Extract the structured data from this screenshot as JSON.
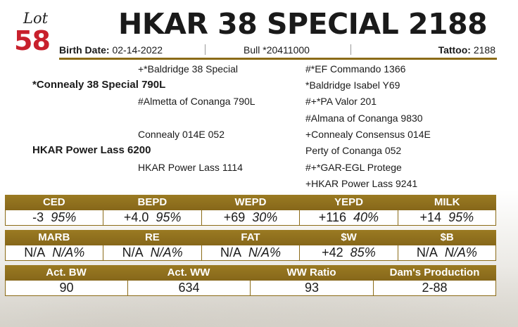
{
  "lot": {
    "word": "Lot",
    "number": "58"
  },
  "title": "HKAR 38 SPECIAL 2188",
  "info": {
    "birth_label": "Birth Date:",
    "birth_value": "02-14-2022",
    "bull_label": "Bull",
    "bull_value": "*20411000",
    "tattoo_label": "Tattoo:",
    "tattoo_value": "2188"
  },
  "pedigree": {
    "sire": "*Connealy 38 Special 790L",
    "sire_sire": "+*Baldridge 38 Special",
    "sire_dam": "#Almetta of Conanga 790L",
    "ss_sire": "#*EF Commando 1366",
    "ss_dam": "*Baldridge Isabel Y69",
    "sd_sire": "#+*PA Valor 201",
    "sd_dam": "#Almana of Conanga 9830",
    "dam": "HKAR Power Lass 6200",
    "dam_sire": "Connealy 014E 052",
    "dam_dam": "HKAR Power Lass 1114",
    "ds_sire": "+Connealy Consensus 014E",
    "ds_dam": "Perty of Conanga 052",
    "dd_sire": "#+*GAR-EGL Protege",
    "dd_dam": "+HKAR Power Lass 9241"
  },
  "epd1": [
    {
      "label": "CED",
      "value": "-3",
      "acc": "95%"
    },
    {
      "label": "BEPD",
      "value": "+4.0",
      "acc": "95%"
    },
    {
      "label": "WEPD",
      "value": "+69",
      "acc": "30%"
    },
    {
      "label": "YEPD",
      "value": "+116",
      "acc": "40%"
    },
    {
      "label": "MILK",
      "value": "+14",
      "acc": "95%"
    }
  ],
  "epd2": [
    {
      "label": "MARB",
      "value": "N/A",
      "acc": "N/A%"
    },
    {
      "label": "RE",
      "value": "N/A",
      "acc": "N/A%"
    },
    {
      "label": "FAT",
      "value": "N/A",
      "acc": "N/A%"
    },
    {
      "label": "$W",
      "value": "+42",
      "acc": "85%"
    },
    {
      "label": "$B",
      "value": "N/A",
      "acc": "N/A%"
    }
  ],
  "actuals": [
    {
      "label": "Act. BW",
      "value": "90"
    },
    {
      "label": "Act. WW",
      "value": "634"
    },
    {
      "label": "WW Ratio",
      "value": "93"
    },
    {
      "label": "Dam's Production",
      "value": "2-88"
    }
  ],
  "colors": {
    "gold": "#8b6b17",
    "lot_red": "#c8202c"
  }
}
